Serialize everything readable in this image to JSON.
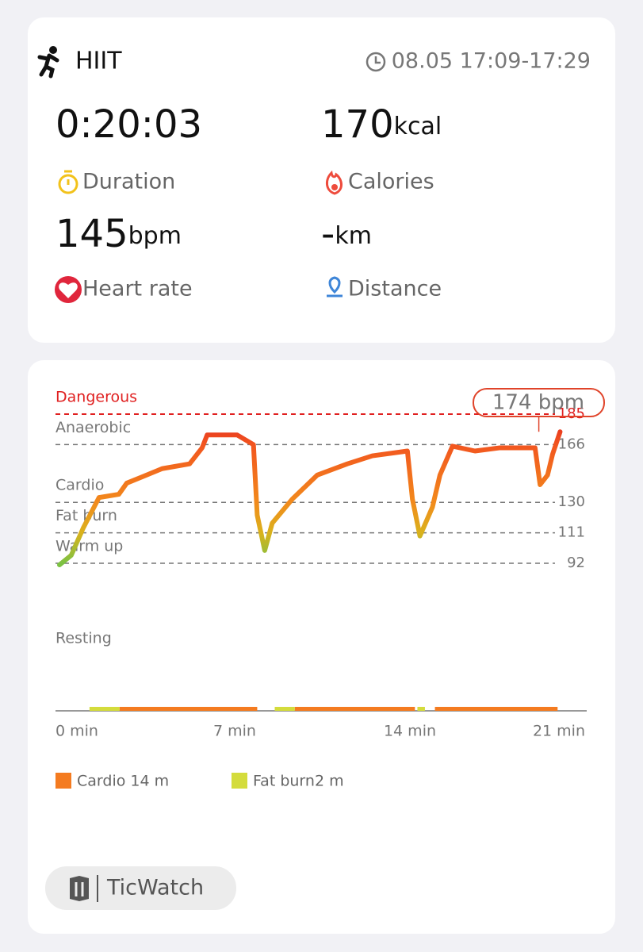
{
  "header": {
    "activity": "HIIT",
    "time": "08.05 17:09-17:29"
  },
  "stats": [
    {
      "value": "0:20:03",
      "label": "Duration"
    },
    {
      "value": "170",
      "unit": "kcal",
      "label": "Calories"
    },
    {
      "value": "145",
      "unit": "bpm",
      "label": "Heart rate"
    },
    {
      "value": "-",
      "unit": "km",
      "label": "Distance"
    }
  ],
  "chart_data": {
    "type": "line",
    "x": [
      0,
      0.47,
      0.95,
      1.58,
      2.37,
      2.69,
      3.32,
      4.1,
      5.2,
      5.7,
      5.9,
      7.1,
      7.75,
      7.9,
      8.2,
      8.5,
      9.3,
      10.3,
      11.5,
      12.5,
      13.9,
      14.1,
      14.4,
      14.9,
      15.2,
      15.7,
      16.6,
      17.6,
      19.0,
      19.2,
      19.5,
      19.7,
      20.0
    ],
    "values": [
      91,
      97,
      114,
      133,
      135,
      142,
      146,
      151,
      154,
      164,
      172,
      172,
      166,
      122,
      100,
      117,
      132,
      147,
      154,
      159,
      162,
      132,
      109,
      127,
      147,
      165,
      162,
      164,
      164,
      141,
      147,
      160,
      174
    ],
    "xlim": [
      0,
      21
    ],
    "ylim": [
      0,
      185
    ],
    "xticks": [
      {
        "value": 0,
        "label": "0 min"
      },
      {
        "value": 7,
        "label": "7 min"
      },
      {
        "value": 14,
        "label": "14 min"
      },
      {
        "value": 21,
        "label": "21 min"
      }
    ],
    "zones": [
      {
        "name": "Dangerous",
        "limit": 185,
        "color": "#e0231f"
      },
      {
        "name": "Anaerobic",
        "limit": 166,
        "color": "#f2551f"
      },
      {
        "name": "Cardio",
        "limit": 130,
        "color": "#f28a1c"
      },
      {
        "name": "Fat burn",
        "limit": 111,
        "color": "#dab21c"
      },
      {
        "name": "Warm up",
        "limit": 92,
        "color": "#7cc242"
      },
      {
        "name": "Resting"
      }
    ],
    "annotation": {
      "x": 19.15,
      "y": 174,
      "label": "174 bpm"
    },
    "zone_time": [
      {
        "name": "Cardio 14 m",
        "color": "#f47b20",
        "segments": [
          [
            2.4,
            7.9
          ],
          [
            9.4,
            14.2
          ],
          [
            15.0,
            19.9
          ]
        ]
      },
      {
        "name": "Fat burn2 m",
        "color": "#d4dc3c",
        "segments": [
          [
            1.2,
            2.4
          ],
          [
            8.6,
            9.4
          ],
          [
            14.3,
            14.6
          ]
        ]
      }
    ]
  },
  "footer": {
    "brand": "TicWatch"
  }
}
